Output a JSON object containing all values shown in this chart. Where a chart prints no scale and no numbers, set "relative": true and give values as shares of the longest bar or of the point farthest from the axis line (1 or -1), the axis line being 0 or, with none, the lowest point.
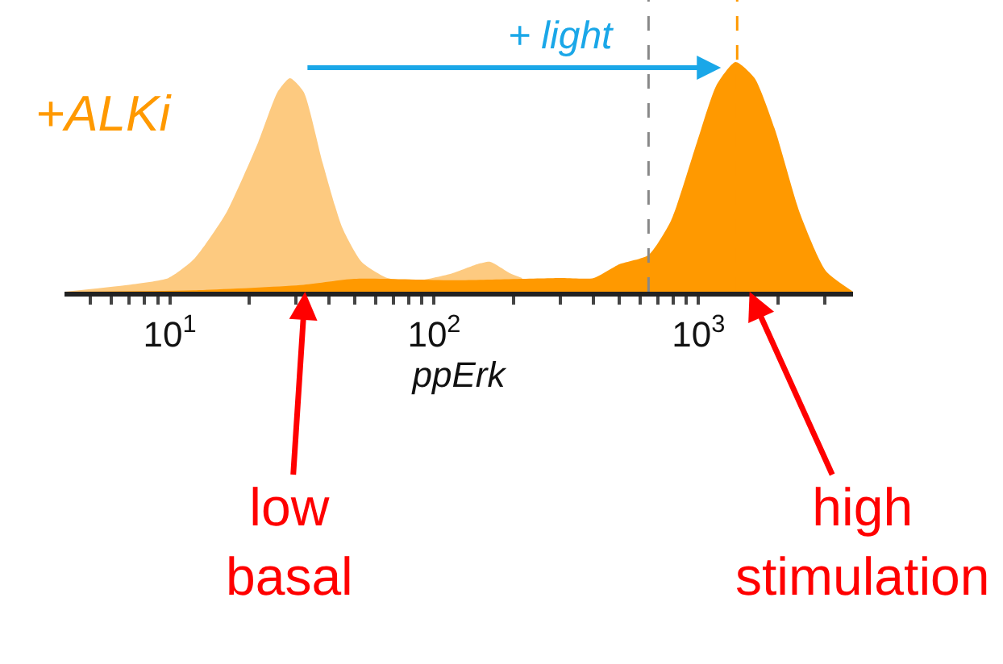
{
  "chart_data": {
    "type": "area",
    "relative": true,
    "log": "x",
    "xlabel": "ppErk",
    "xlim": [
      4.0,
      3840
    ],
    "xticks": [
      {
        "value": 5,
        "label": null
      },
      {
        "value": 6,
        "label": null
      },
      {
        "value": 7,
        "label": null
      },
      {
        "value": 8,
        "label": null
      },
      {
        "value": 9,
        "label": null
      },
      {
        "value": 10,
        "label": "10$^{1}$"
      },
      {
        "value": 20,
        "label": null
      },
      {
        "value": 30,
        "label": null
      },
      {
        "value": 40,
        "label": null
      },
      {
        "value": 50,
        "label": null
      },
      {
        "value": 60,
        "label": null
      },
      {
        "value": 70,
        "label": null
      },
      {
        "value": 80,
        "label": null
      },
      {
        "value": 90,
        "label": null
      },
      {
        "value": 100,
        "label": "10$^{2}$"
      },
      {
        "value": 200,
        "label": null
      },
      {
        "value": 300,
        "label": null
      },
      {
        "value": 400,
        "label": null
      },
      {
        "value": 500,
        "label": null
      },
      {
        "value": 600,
        "label": null
      },
      {
        "value": 700,
        "label": null
      },
      {
        "value": 800,
        "label": null
      },
      {
        "value": 900,
        "label": null
      },
      {
        "value": 1000,
        "label": "10$^{3}$"
      },
      {
        "value": 2000,
        "label": null
      },
      {
        "value": 3000,
        "label": null
      }
    ],
    "series": [
      {
        "color": "#fdca80",
        "x": [
          4.0,
          7.0,
          9.9,
          12.3,
          16.3,
          21.6,
          25.6,
          28.5,
          32.1,
          37.9,
          44.9,
          53.2,
          66.6,
          88,
          117,
          146,
          163,
          194,
          215
        ],
        "values": [
          0,
          0.03,
          0.06,
          0.14,
          0.34,
          0.65,
          0.87,
          0.93,
          0.87,
          0.56,
          0.28,
          0.13,
          0.06,
          0.05,
          0.08,
          0.12,
          0.13,
          0.08,
          0.06
        ]
      },
      {
        "color": "#ff9900",
        "x": [
          4.0,
          12.3,
          32.1,
          50,
          117,
          303,
          402,
          503,
          647,
          787,
          986,
          1170,
          1380,
          1630,
          1940,
          2420,
          3030,
          3840
        ],
        "values": [
          0,
          0.006,
          0.03,
          0.056,
          0.05,
          0.06,
          0.06,
          0.12,
          0.16,
          0.31,
          0.65,
          0.9,
          1.0,
          0.93,
          0.71,
          0.34,
          0.09,
          0
        ]
      }
    ],
    "ref_lines": [
      {
        "axis": "x",
        "value": 647,
        "color": "#888888",
        "line_style": "dashed"
      },
      {
        "axis": "x",
        "value": 1400,
        "color": "#ff9900",
        "line_style": "dashed"
      }
    ],
    "annotations": [
      "+ALKi",
      {
        "text": "+ light",
        "x": 1216,
        "y": 0.975
      },
      {
        "text": "low\nbasal",
        "x": 32.5,
        "y": 0
      },
      {
        "text": "high\nstimulation",
        "x": 1560,
        "y": 0
      }
    ]
  }
}
